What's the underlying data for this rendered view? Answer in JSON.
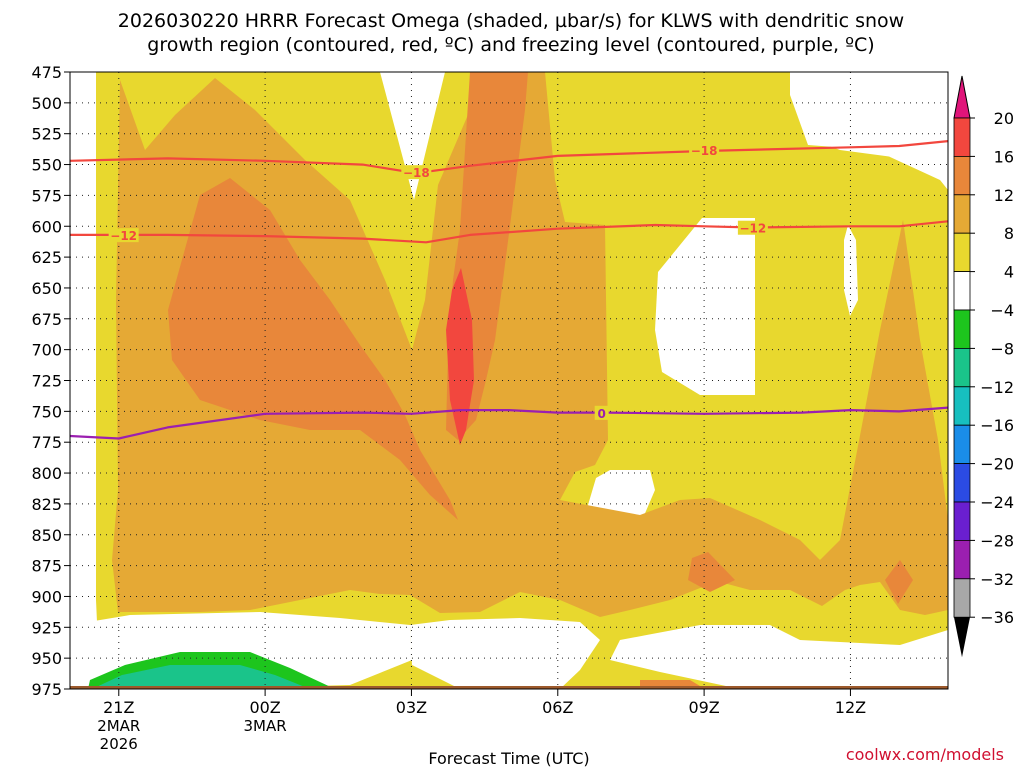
{
  "title_line1": "2026030220 HRRR Forecast Omega (shaded, µbar/s) for KLWS with dendritic snow",
  "title_line2": "growth region (contoured, red, ºC) and freezing level (contoured, purple, ºC)",
  "credit": "coolwx.com/models",
  "colors": {
    "white": "#ffffff",
    "y4": "#e8d82e",
    "o8": "#e5a935",
    "o12": "#e8873a",
    "r16": "#f2473e",
    "g4": "#1dc51d",
    "g8": "#1ac48a",
    "dendritic_line": "#f2473e",
    "freezing_line": "#9b1fb0",
    "ground": "#9d5a2c",
    "credit": "#d01030"
  },
  "chart_data": {
    "type": "heatmap",
    "title": "2026030220 HRRR Forecast Omega (shaded, µbar/s) for KLWS with dendritic snow growth region (contoured, red, ºC) and freezing level (contoured, purple, ºC)",
    "xlabel": "Forecast Time (UTC)",
    "ylabel": "",
    "x_ticks": [
      {
        "label": "21Z",
        "sub": [
          "2MAR",
          "2026"
        ],
        "hour": 21
      },
      {
        "label": "00Z",
        "sub": [
          "3MAR"
        ],
        "hour": 24
      },
      {
        "label": "03Z",
        "sub": [],
        "hour": 27
      },
      {
        "label": "06Z",
        "sub": [],
        "hour": 30
      },
      {
        "label": "09Z",
        "sub": [],
        "hour": 33
      },
      {
        "label": "12Z",
        "sub": [],
        "hour": 36
      }
    ],
    "x_range_hours": [
      20,
      38
    ],
    "y_ticks": [
      475,
      500,
      525,
      550,
      575,
      600,
      625,
      650,
      675,
      700,
      725,
      750,
      775,
      800,
      825,
      850,
      875,
      900,
      925,
      950,
      975
    ],
    "y_range_mb": [
      475,
      975
    ],
    "grid": true,
    "colorbar_levels": [
      "20",
      "16",
      "12",
      "8",
      "4",
      "−4",
      "−8",
      "−12",
      "−16",
      "−20",
      "−24",
      "−28",
      "−32",
      "−36"
    ],
    "colorbar_colors": [
      "#f2473e",
      "#e8873a",
      "#e5a935",
      "#e8d82e",
      "#ffffff",
      "#1dc51d",
      "#1ac48a",
      "#17bfbf",
      "#1a8de8",
      "#2b4be3",
      "#6a1fd0",
      "#9b1fb0",
      "#a8a8a8"
    ],
    "colorbar_top_color": "#e0157a",
    "colorbar_bottom_color": "#000000",
    "contour_lines": [
      {
        "name": "dendritic -18",
        "label": "−18",
        "color": "#f2473e",
        "points": [
          [
            20,
            547
          ],
          [
            22,
            545
          ],
          [
            24,
            547
          ],
          [
            26,
            550
          ],
          [
            27.1,
            557
          ],
          [
            28.2,
            551
          ],
          [
            30,
            543
          ],
          [
            33,
            539
          ],
          [
            36,
            536
          ],
          [
            37,
            535
          ],
          [
            38,
            531
          ]
        ],
        "label_at": [
          [
            27.1,
            557
          ],
          [
            33,
            539
          ]
        ]
      },
      {
        "name": "dendritic -12",
        "label": "−12",
        "color": "#f2473e",
        "points": [
          [
            20,
            607
          ],
          [
            22,
            607
          ],
          [
            24,
            608
          ],
          [
            26,
            610
          ],
          [
            27.3,
            613
          ],
          [
            28.2,
            607
          ],
          [
            30,
            602
          ],
          [
            32,
            599
          ],
          [
            33,
            600
          ],
          [
            34,
            601
          ],
          [
            36,
            600
          ],
          [
            37,
            600
          ],
          [
            38,
            596
          ]
        ],
        "label_at": [
          [
            21.1,
            608
          ],
          [
            34,
            602
          ]
        ]
      },
      {
        "name": "freezing level 0",
        "label": "0",
        "color": "#9b1fb0",
        "points": [
          [
            20,
            770
          ],
          [
            21,
            772
          ],
          [
            22,
            763
          ],
          [
            24,
            752
          ],
          [
            26,
            751
          ],
          [
            27,
            752
          ],
          [
            28,
            749
          ],
          [
            29,
            749
          ],
          [
            30,
            751
          ],
          [
            31,
            751
          ],
          [
            33,
            752
          ],
          [
            35,
            751
          ],
          [
            36,
            749
          ],
          [
            37,
            750
          ],
          [
            38,
            747
          ]
        ],
        "label_at": [
          [
            30.9,
            752
          ]
        ]
      }
    ]
  }
}
